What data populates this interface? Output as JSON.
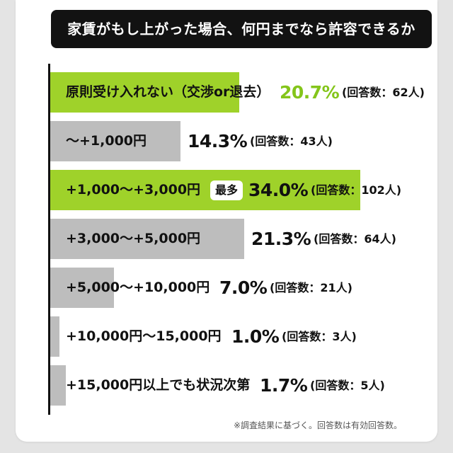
{
  "colors": {
    "highlight": "#9fd22a",
    "bar": "#bdbdbd",
    "accent_text": "#84c51a",
    "title_bg": "#121212"
  },
  "chart_data": {
    "type": "bar",
    "orientation": "horizontal",
    "title": "家賃がもし上がった場合、何円までなら許容できるか",
    "unit": "%",
    "xlim": [
      0,
      34.0
    ],
    "categories": [
      "原則受け入れない（交渉or退去）",
      "〜+1,000円",
      "+1,000〜+3,000円",
      "+3,000〜+5,000円",
      "+5,000〜+10,000円",
      "+10,000円〜15,000円",
      "+15,000円以上でも状況次第"
    ],
    "values": [
      20.7,
      14.3,
      34.0,
      21.3,
      7.0,
      1.0,
      1.7
    ],
    "value_labels": [
      "20.7%",
      "14.3%",
      "34.0%",
      "21.3%",
      "7.0%",
      "1.0%",
      "1.7%"
    ],
    "respondent_labels": [
      "(回答数：62人)",
      "(回答数：43人)",
      "(回答数：102人)",
      "(回答数：64人)",
      "(回答数：21人)",
      "(回答数：3人)",
      "(回答数：5人)"
    ],
    "respondents": [
      62,
      43,
      102,
      64,
      21,
      3,
      5
    ],
    "highlighted": [
      true,
      false,
      true,
      false,
      false,
      false,
      false
    ],
    "accent_value": [
      true,
      false,
      false,
      false,
      false,
      false,
      false
    ],
    "badges": [
      null,
      null,
      "最多",
      null,
      null,
      null,
      null
    ],
    "legend": "none",
    "grid": false
  },
  "footnote": "※調査結果に基づく。回答数は有効回答数。"
}
